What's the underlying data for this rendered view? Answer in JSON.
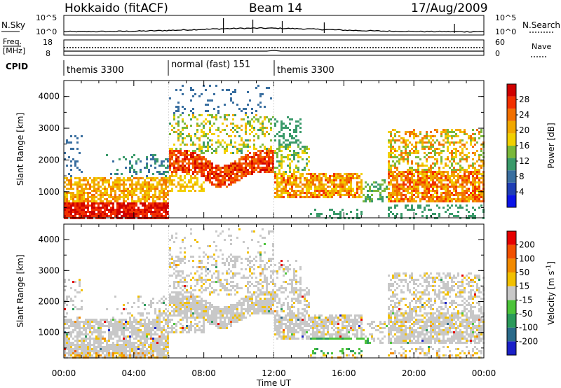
{
  "header": {
    "station": "Hokkaido (fitACF)",
    "beam": "Beam 14",
    "date": "17/Aug/2009"
  },
  "noise_panel": {
    "left_label": "N.Sky",
    "right_label": "N.Search",
    "left_top_tick": "10^5",
    "left_bottom_tick": "10^0",
    "right_top_tick": "10^5",
    "right_bottom_tick": "10^0"
  },
  "freq_panel": {
    "left_label_1": "Freq.",
    "left_label_2": "[MHz]",
    "right_label": "Nave",
    "left_top_tick": "18",
    "left_bottom_tick": "8",
    "right_top_tick": "60",
    "right_bottom_tick": "0"
  },
  "cpid_panel": {
    "label": "CPID",
    "segments": [
      {
        "name": "themis 3300",
        "start": 0,
        "end": 6
      },
      {
        "name": "normal (fast) 151",
        "start": 6,
        "end": 12
      },
      {
        "name": "themis 3300",
        "start": 12,
        "end": 24
      }
    ]
  },
  "colors": {
    "scale": [
      "#0b14e8",
      "#1f47a8",
      "#2a7a5a",
      "#3aa03a",
      "#a6cf2e",
      "#f2c200",
      "#f29a00",
      "#f26400",
      "#e61a00",
      "#c80000"
    ]
  },
  "chart_data": [
    {
      "type": "heatmap",
      "title": "",
      "xlabel": "",
      "ylabel": "Slant Range [km]",
      "x_ticks": [
        "00:00",
        "04:00",
        "08:00",
        "12:00",
        "16:00",
        "20:00",
        "00:00"
      ],
      "y_ticks": [
        "1000",
        "2000",
        "3000",
        "4000"
      ],
      "xlim": [
        0,
        24
      ],
      "ylim": [
        180,
        4500
      ],
      "colorbar": {
        "label": "Power [dB]",
        "ticks": [
          "4",
          "8",
          "12",
          "16",
          "20",
          "24",
          "28"
        ],
        "colors": [
          "#0b14e8",
          "#1f3fb5",
          "#3a6fa0",
          "#3a9a6a",
          "#7ab83a",
          "#f2d000",
          "#f2a800",
          "#f27000",
          "#f23000",
          "#d00000"
        ]
      }
    },
    {
      "type": "heatmap",
      "title": "",
      "xlabel": "Time UT",
      "ylabel": "Slant Range [km]",
      "x_ticks": [
        "00:00",
        "04:00",
        "08:00",
        "12:00",
        "16:00",
        "20:00",
        "00:00"
      ],
      "y_ticks": [
        "1000",
        "2000",
        "3000",
        "4000"
      ],
      "xlim": [
        0,
        24
      ],
      "ylim": [
        180,
        4500
      ],
      "colorbar": {
        "label": "Velocity [m s",
        "label_superscript": "-1",
        "label_end": "]",
        "ticks": [
          "200",
          "100",
          "50",
          "15",
          "-15",
          "-50",
          "-100",
          "-200"
        ],
        "colors": [
          "#1a20c8",
          "#2a6a8a",
          "#2a9a5a",
          "#4cc43a",
          "#c8c8c8",
          "#f2c000",
          "#f28a00",
          "#f25000",
          "#e60000"
        ]
      }
    }
  ]
}
